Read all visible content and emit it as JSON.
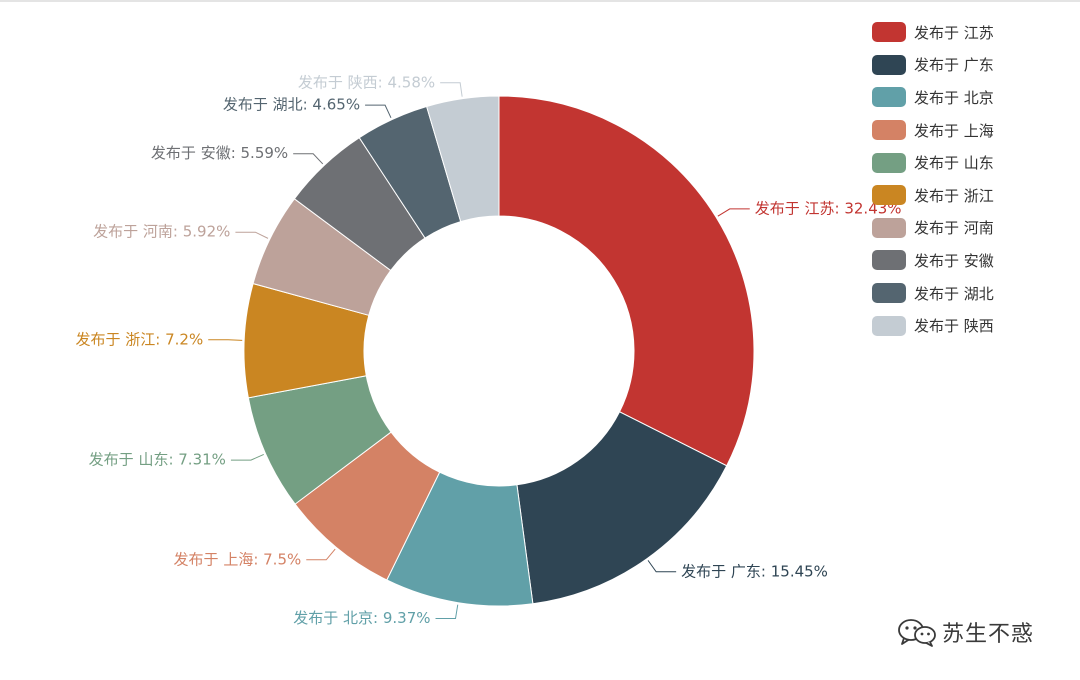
{
  "chart_data": {
    "type": "pie",
    "variant": "donut",
    "label_format": "{name}: {percent}%",
    "legend_placement": "top-right",
    "slices": [
      {
        "name": "发布于 江苏",
        "percent": 32.43,
        "color": "#c23531"
      },
      {
        "name": "发布于 广东",
        "percent": 15.45,
        "color": "#2f4554"
      },
      {
        "name": "发布于 北京",
        "percent": 9.37,
        "color": "#61a0a8"
      },
      {
        "name": "发布于 上海",
        "percent": 7.5,
        "color": "#d48265"
      },
      {
        "name": "发布于 山东",
        "percent": 7.31,
        "color": "#749f83"
      },
      {
        "name": "发布于 浙江",
        "percent": 7.2,
        "color": "#ca8622"
      },
      {
        "name": "发布于 河南",
        "percent": 5.92,
        "color": "#bda29a"
      },
      {
        "name": "发布于 安徽",
        "percent": 5.59,
        "color": "#6e7074"
      },
      {
        "name": "发布于 湖北",
        "percent": 4.65,
        "color": "#546570"
      },
      {
        "name": "发布于 陕西",
        "percent": 4.58,
        "color": "#c4ccd3"
      }
    ]
  },
  "watermark": {
    "icon": "wechat-icon",
    "text": "苏生不惑"
  }
}
